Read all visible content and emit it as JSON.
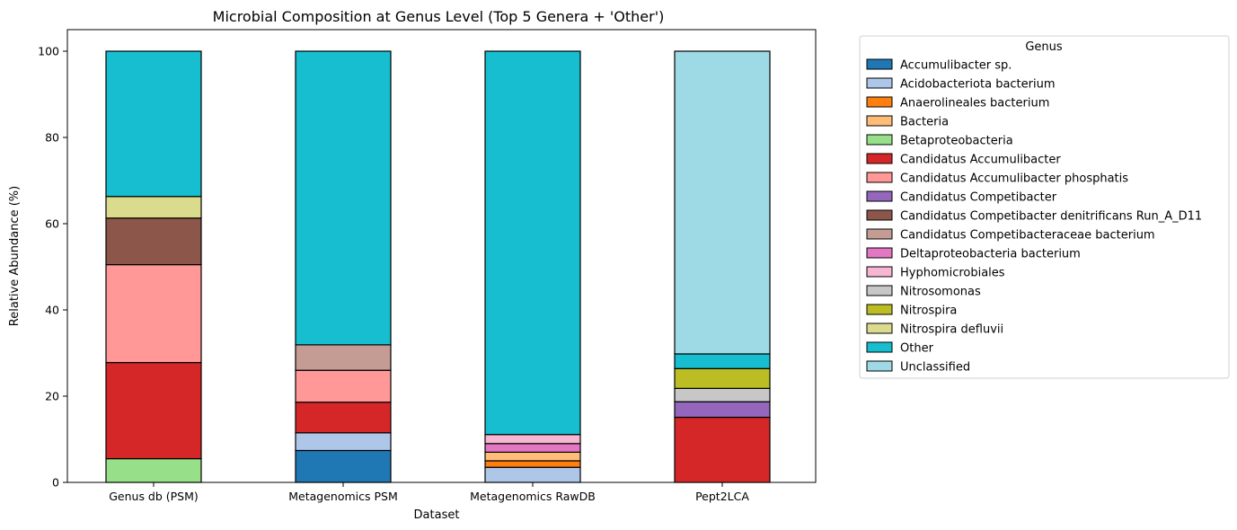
{
  "chart_data": {
    "type": "bar",
    "stacked": true,
    "title": "Microbial Composition at Genus Level (Top 5 Genera + 'Other')",
    "xlabel": "Dataset",
    "ylabel": "Relative Abundance (%)",
    "ylim": [
      0,
      105
    ],
    "yticks": [
      "0",
      "20",
      "40",
      "60",
      "80",
      "100"
    ],
    "categories": [
      "Genus db (PSM)",
      "Metagenomics PSM",
      "Metagenomics RawDB",
      "Pept2LCA"
    ],
    "legend_title": "Genus",
    "legend_position": "outside-right",
    "grid": false,
    "series": [
      {
        "name": "Accumulibacter sp.",
        "color": "#1f77b4",
        "values": [
          0,
          7.4,
          0,
          0
        ]
      },
      {
        "name": "Acidobacteriota bacterium",
        "color": "#aec7e8",
        "values": [
          0,
          4.1,
          3.5,
          0
        ]
      },
      {
        "name": "Anaerolineales bacterium",
        "color": "#ff7f0e",
        "values": [
          0,
          0,
          1.5,
          0
        ]
      },
      {
        "name": "Bacteria",
        "color": "#ffbb78",
        "values": [
          0,
          0,
          2.0,
          0
        ]
      },
      {
        "name": "Betaproteobacteria",
        "color": "#98df8a",
        "values": [
          5.5,
          0,
          0,
          0
        ]
      },
      {
        "name": "Candidatus Accumulibacter",
        "color": "#d62728",
        "values": [
          22.3,
          7.1,
          0,
          15.1
        ]
      },
      {
        "name": "Candidatus Accumulibacter phosphatis",
        "color": "#ff9896",
        "values": [
          22.7,
          7.4,
          0,
          0
        ]
      },
      {
        "name": "Candidatus Competibacter",
        "color": "#9467bd",
        "values": [
          0,
          0,
          0,
          3.6
        ]
      },
      {
        "name": "Candidatus Competibacter denitrificans Run_A_D11",
        "color": "#8c564b",
        "values": [
          10.8,
          0,
          0,
          0
        ]
      },
      {
        "name": "Candidatus Competibacteraceae bacterium",
        "color": "#c49c94",
        "values": [
          0,
          5.9,
          0,
          0
        ]
      },
      {
        "name": "Deltaproteobacteria bacterium",
        "color": "#e377c2",
        "values": [
          0,
          0,
          2.0,
          0
        ]
      },
      {
        "name": "Hyphomicrobiales",
        "color": "#f7b6d2",
        "values": [
          0,
          0,
          2.1,
          0
        ]
      },
      {
        "name": "Nitrosomonas",
        "color": "#c7c7c7",
        "values": [
          0,
          0,
          0,
          3.1
        ]
      },
      {
        "name": "Nitrospira",
        "color": "#bcbd22",
        "values": [
          0,
          0,
          0,
          4.6
        ]
      },
      {
        "name": "Nitrospira defluvii",
        "color": "#dbdb8d",
        "values": [
          5.0,
          0,
          0,
          0
        ]
      },
      {
        "name": "Other",
        "color": "#17becf",
        "values": [
          33.7,
          68.1,
          88.9,
          3.4
        ]
      },
      {
        "name": "Unclassified",
        "color": "#9edae5",
        "values": [
          0,
          0,
          0,
          70.2
        ]
      }
    ]
  }
}
